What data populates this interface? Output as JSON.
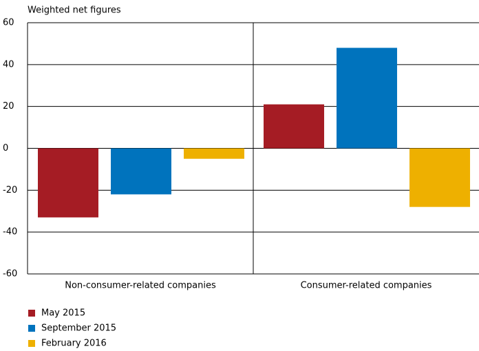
{
  "chart_data": {
    "type": "bar",
    "subtitle": "Weighted net figures",
    "categories": [
      "Non-consumer-related companies",
      "Consumer-related companies"
    ],
    "series": [
      {
        "name": "May 2015",
        "color": "#a51c24",
        "values": [
          -33,
          21
        ]
      },
      {
        "name": "September 2015",
        "color": "#0073bd",
        "values": [
          -22,
          48
        ]
      },
      {
        "name": "February 2016",
        "color": "#eeb000",
        "values": [
          -5,
          -28
        ]
      }
    ],
    "ylim": [
      -60,
      60
    ],
    "yticks": [
      -60,
      -40,
      -20,
      0,
      20,
      40,
      60
    ],
    "grid": true
  }
}
